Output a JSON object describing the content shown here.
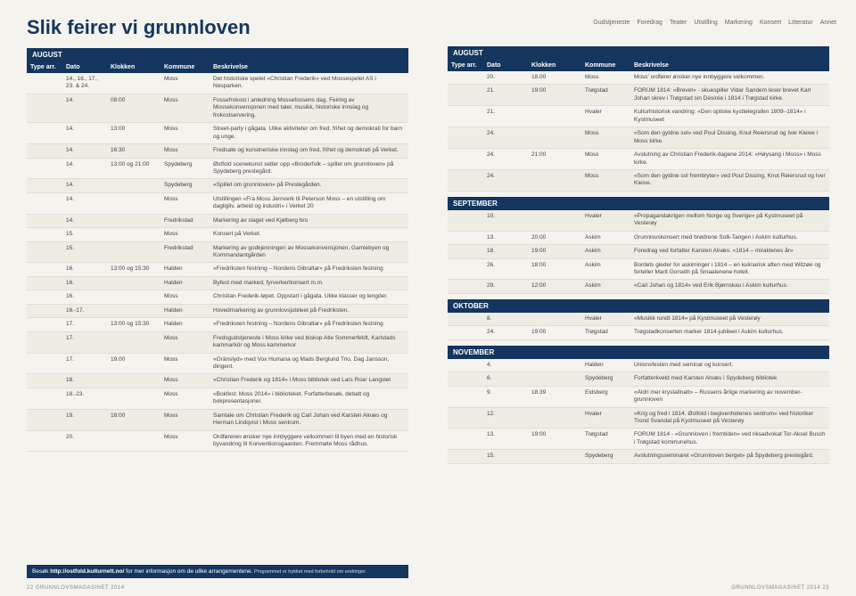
{
  "title": "Slik feirer vi grunnloven",
  "categories": [
    "Gudstjeneste",
    "Foredrag",
    "Teater",
    "Utstilling",
    "Markering",
    "Konsert",
    "Litteratur",
    "Annet"
  ],
  "headers": {
    "type": "Type arr.",
    "dato": "Dato",
    "klokken": "Klokken",
    "kommune": "Kommune",
    "beskr": "Beskrivelse"
  },
  "left": {
    "month": "AUGUST",
    "rows": [
      {
        "d": "14., 16., 17., 23. & 24.",
        "k": "",
        "kom": "Moss",
        "b": "Det historiske spelet «Christian Frederik» ved Mossespelet AS i Nesparken."
      },
      {
        "d": "14.",
        "k": "08:00",
        "kom": "Moss",
        "b": "Fossefrokost i anledning Mossefossens dag. Feiring av Mossekonvensjonen med taler, musikk, historiske innslag og frokostservering."
      },
      {
        "d": "14.",
        "k": "13:00",
        "kom": "Moss",
        "b": "Street-party i gågata. Ulike aktiviteter om fred, frihet og demokrati for barn og unge."
      },
      {
        "d": "14.",
        "k": "16:30",
        "kom": "Moss",
        "b": "Fredsate og kunstneriske innslag om fred, frihet og demokrati på Verket."
      },
      {
        "d": "14.",
        "k": "13:00 og 21:00",
        "kom": "Spydeberg",
        "b": "Østfold scenekunst setter opp «Broderfolk – spillet om grunnloven» på Spydeberg prestegård."
      },
      {
        "d": "14.",
        "k": "",
        "kom": "Spydeberg",
        "b": "«Spillet om grunnloven» på Prestegården."
      },
      {
        "d": "14.",
        "k": "",
        "kom": "Moss",
        "b": "Utstillingen «Fra Moss Jernverk til Peterson Moss – en utstilling om dagligliv, arbeid og industri» i Verket 20"
      },
      {
        "d": "14.",
        "k": "",
        "kom": "Fredrikstad",
        "b": "Markering av slaget ved Kjølberg bro"
      },
      {
        "d": "15.",
        "k": "",
        "kom": "Moss",
        "b": "Konsert på Verket."
      },
      {
        "d": "15.",
        "k": "",
        "kom": "Fredrikstad",
        "b": "Markering av godkjenningen av Mossekonvensjonen, Gamlebyen og Kommandantgården"
      },
      {
        "d": "16.",
        "k": "13:00 og 15:30",
        "kom": "Halden",
        "b": "«Fredriksten festning – Nordens Gibraltar» på Fredriksten festning"
      },
      {
        "d": "16.",
        "k": "",
        "kom": "Halden",
        "b": "Byfest med marked, fyrverkerikonsert m.m."
      },
      {
        "d": "16.",
        "k": "",
        "kom": "Moss",
        "b": "Christian Frederik-løpet. Oppstart i gågata. Ulike klasser og lengder."
      },
      {
        "d": "16.-17.",
        "k": "",
        "kom": "Halden",
        "b": "Hovedmarkering av grunnlovsjubileet på Fredriksten."
      },
      {
        "d": "17.",
        "k": "13:00 og 15:30",
        "kom": "Halden",
        "b": "«Fredriksten festning – Nordens Gibraltar» på Fredriksten festning"
      },
      {
        "d": "17.",
        "k": "",
        "kom": "Moss",
        "b": "Fredsgudstjeneste i Moss kirke ved biskop Atle Sommerfeldt, Karlstads kammarkör og Moss kammerkor"
      },
      {
        "d": "17.",
        "k": "19.00",
        "kom": "Moss",
        "b": "«Gränslyd» med Vox Humana og Mads Berglund Trio, Dag Jansson, dirigent."
      },
      {
        "d": "18.",
        "k": "",
        "kom": "Moss",
        "b": "«Christian Frederik og 1814» i Moss bibliotek ved Lars Roar Langslet"
      },
      {
        "d": "18.-23.",
        "k": "",
        "kom": "Moss",
        "b": "«Bokfest: Moss 2014» i biblioteket. Forfatterbesøk, debatt og bokpresentasjoner."
      },
      {
        "d": "19.",
        "k": "18:00",
        "kom": "Moss",
        "b": "Samtale om Christian Frederik og Carl Johan ved Karsten Alnæs og Herman Lindqvist i Moss sentrum."
      },
      {
        "d": "20.",
        "k": "",
        "kom": "Moss",
        "b": "Ordføreren ønsker nye innbyggere velkommen til byen med en historisk byvandring til Konventionsgaarden. Fremmøte Moss rådhus."
      }
    ]
  },
  "right": {
    "months": [
      {
        "name": "AUGUST",
        "rows": [
          {
            "d": "20.",
            "k": "18.00",
            "kom": "Moss",
            "b": "Moss' ordfører ønsker nye innbyggere velkommen."
          },
          {
            "d": "21.",
            "k": "19:00",
            "kom": "Trøgstad",
            "b": "FORUM 1814: «Brevet» - skuespiller Vidar Sandem leser brevet Karl Johan skrev i Trøgstad sin Désirée i 1814 i Trøgstad kirke."
          },
          {
            "d": "21.",
            "k": "",
            "kom": "Hvaler",
            "b": "Kulturhistorisk vandring: «Den optiske kysttelegrafen 1809–1814» i Kystmuseet"
          },
          {
            "d": "24.",
            "k": "",
            "kom": "Moss",
            "b": "«Som den gyldne sol» ved Poul Dissing, Knut Reiersrud og Iver Kleive i Moss kirke."
          },
          {
            "d": "24.",
            "k": "21:00",
            "kom": "Moss",
            "b": "Avslutning av Christian Frederik-dagene 2014: «Høysang i Moss» i Moss kirke."
          },
          {
            "d": "24.",
            "k": "",
            "kom": "Moss",
            "b": "«Som den gyldne sol frembryter» ved Poul Dissing, Knut Reiersrud og Iver Kleive."
          }
        ]
      },
      {
        "name": "SEPTEMBER",
        "rows": [
          {
            "d": "10.",
            "k": "",
            "kom": "Hvaler",
            "b": "«Propagandakrigen mellom Norge og Sverige» på Kystmuseet på Vesterøy"
          },
          {
            "d": "13.",
            "k": "20:00",
            "kom": "Askim",
            "b": "Grunnlovskonsert med brødrene Solli-Tangen i Askim kulturhus."
          },
          {
            "d": "18.",
            "k": "19:00",
            "kom": "Askim",
            "b": "Foredrag ved forfatter Karsten Alnæs: «1814 – miraklenes år»"
          },
          {
            "d": "26.",
            "k": "18:00",
            "kom": "Askim",
            "b": "Bordets gleder for askiminger i 1814 – en kulinarisk aften med Witzøe og forteller Marit Gorseth på Smaalenene hotell."
          },
          {
            "d": "29.",
            "k": "12:00",
            "kom": "Askim",
            "b": "«Carl Johan og 1814» ved Erik Bjørnskau i Askim kulturhus."
          }
        ]
      },
      {
        "name": "OKTOBER",
        "rows": [
          {
            "d": "8.",
            "k": "",
            "kom": "Hvaler",
            "b": "«Musikk rundt 1814» på Kystmuseet på Vesterøy"
          },
          {
            "d": "24.",
            "k": "19:00",
            "kom": "Trøgstad",
            "b": "Trøgstadkonserten marker 1814-jubileet i Askim kulturhus."
          }
        ]
      },
      {
        "name": "NOVEMBER",
        "rows": [
          {
            "d": "4.",
            "k": "",
            "kom": "Halden",
            "b": "Unionsfesten med seminar og konsert."
          },
          {
            "d": "6.",
            "k": "",
            "kom": "Spydeberg",
            "b": "Forfatterkveld med Karsten Alnæs i Spydeberg bibliotek"
          },
          {
            "d": "9.",
            "k": "18.39",
            "kom": "Eidsberg",
            "b": "«Aldri mer krystallnatt» – Russens årlige markering av november-grunnloven"
          },
          {
            "d": "12.",
            "k": "",
            "kom": "Hvaler",
            "b": "«Krig og fred i 1814. Østfold i begivenhetenes sentrum» ved historiker Trond Svandal på Kystmuseet på Vesterøy"
          },
          {
            "d": "13.",
            "k": "19:00",
            "kom": "Trøgstad",
            "b": "FORUM 1814 - «Grunnloven i fremtiden» ved riksadvokat Tor-Aksel Busch i Trøgstad kommunehus."
          },
          {
            "d": "15.",
            "k": "",
            "kom": "Spydeberg",
            "b": "Avslutningsseminaret «Grunnloven berget» på Spydeberg prestegård."
          }
        ]
      }
    ]
  },
  "footer": {
    "text": "Besøk ",
    "link": "http://ostfold.kulturnett.no/",
    "after": " for mer informasjon om de ulike arrangementene.",
    "small": " Programmet er trykket med forbehold om endringer."
  },
  "pageLeft": "22  GRUNNLOVSMAGASINET 2014",
  "pageRight": "GRUNNLOVSMAGASINET 2014  23"
}
